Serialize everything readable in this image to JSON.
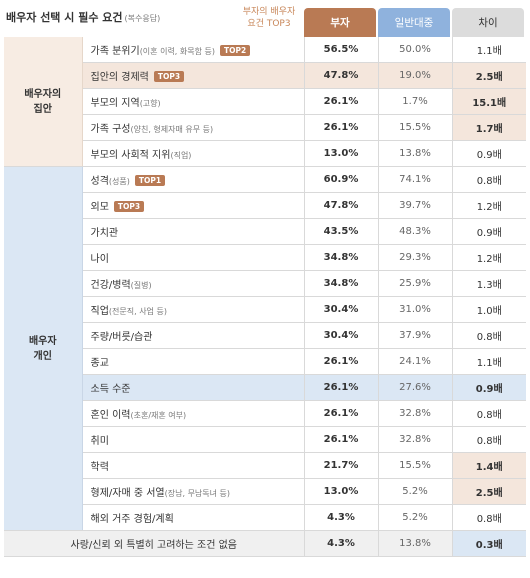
{
  "header": {
    "title": "배우자 선택 시 필수 요건",
    "title_note": "(복수응답)",
    "top3_note_line1": "부자의 배우자",
    "top3_note_line2": "요건 TOP3",
    "col_rich": "부자",
    "col_general": "일반대중",
    "col_diff": "차이"
  },
  "groups": {
    "house": {
      "line1": "배우자의",
      "line2": "집안"
    },
    "personal": {
      "line1": "배우자",
      "line2": "개인"
    }
  },
  "rows": [
    {
      "label": "가족 분위기",
      "note": "(이혼 이력, 화목함 등)",
      "badge": "TOP2",
      "rich": "56.5%",
      "general": "50.0%",
      "diff": "1.1배"
    },
    {
      "label": "집안의 경제력",
      "note": "",
      "badge": "TOP3",
      "rich": "47.8%",
      "general": "19.0%",
      "diff": "2.5배"
    },
    {
      "label": "부모의 지역",
      "note": "(고향)",
      "badge": "",
      "rich": "26.1%",
      "general": "1.7%",
      "diff": "15.1배"
    },
    {
      "label": "가족 구성",
      "note": "(양친, 형제자매 유무 등)",
      "badge": "",
      "rich": "26.1%",
      "general": "15.5%",
      "diff": "1.7배"
    },
    {
      "label": "부모의 사회적 지위",
      "note": "(직업)",
      "badge": "",
      "rich": "13.0%",
      "general": "13.8%",
      "diff": "0.9배"
    },
    {
      "label": "성격",
      "note": "(성품)",
      "badge": "TOP1",
      "rich": "60.9%",
      "general": "74.1%",
      "diff": "0.8배"
    },
    {
      "label": "외모",
      "note": "",
      "badge": "TOP3",
      "rich": "47.8%",
      "general": "39.7%",
      "diff": "1.2배"
    },
    {
      "label": "가치관",
      "note": "",
      "badge": "",
      "rich": "43.5%",
      "general": "48.3%",
      "diff": "0.9배"
    },
    {
      "label": "나이",
      "note": "",
      "badge": "",
      "rich": "34.8%",
      "general": "29.3%",
      "diff": "1.2배"
    },
    {
      "label": "건강/병력",
      "note": "(질병)",
      "badge": "",
      "rich": "34.8%",
      "general": "25.9%",
      "diff": "1.3배"
    },
    {
      "label": "직업",
      "note": "(전문직, 사업 등)",
      "badge": "",
      "rich": "30.4%",
      "general": "31.0%",
      "diff": "1.0배"
    },
    {
      "label": "주량/버릇/습관",
      "note": "",
      "badge": "",
      "rich": "30.4%",
      "general": "37.9%",
      "diff": "0.8배"
    },
    {
      "label": "종교",
      "note": "",
      "badge": "",
      "rich": "26.1%",
      "general": "24.1%",
      "diff": "1.1배"
    },
    {
      "label": "소득 수준",
      "note": "",
      "badge": "",
      "rich": "26.1%",
      "general": "27.6%",
      "diff": "0.9배"
    },
    {
      "label": "혼인 이력",
      "note": "(초혼/재혼 여부)",
      "badge": "",
      "rich": "26.1%",
      "general": "32.8%",
      "diff": "0.8배"
    },
    {
      "label": "취미",
      "note": "",
      "badge": "",
      "rich": "26.1%",
      "general": "32.8%",
      "diff": "0.8배"
    },
    {
      "label": "학력",
      "note": "",
      "badge": "",
      "rich": "21.7%",
      "general": "15.5%",
      "diff": "1.4배"
    },
    {
      "label": "형제/자매 중 서열",
      "note": "(장남, 무남독녀 등)",
      "badge": "",
      "rich": "13.0%",
      "general": "5.2%",
      "diff": "2.5배"
    },
    {
      "label": "해외 거주 경험/계획",
      "note": "",
      "badge": "",
      "rich": "4.3%",
      "general": "5.2%",
      "diff": "0.8배"
    }
  ],
  "last_row": {
    "label": "사랑/신뢰 외 특별히 고려하는 조건 없음",
    "rich": "4.3%",
    "general": "13.8%",
    "diff": "0.3배"
  },
  "colors": {
    "rich_header": "#b97a54",
    "general_header": "#8fb2dd",
    "diff_header": "#dcdcdc",
    "badge": "#b97a54",
    "house_bg": "#f7ece3",
    "personal_bg": "#dbe7f4"
  }
}
